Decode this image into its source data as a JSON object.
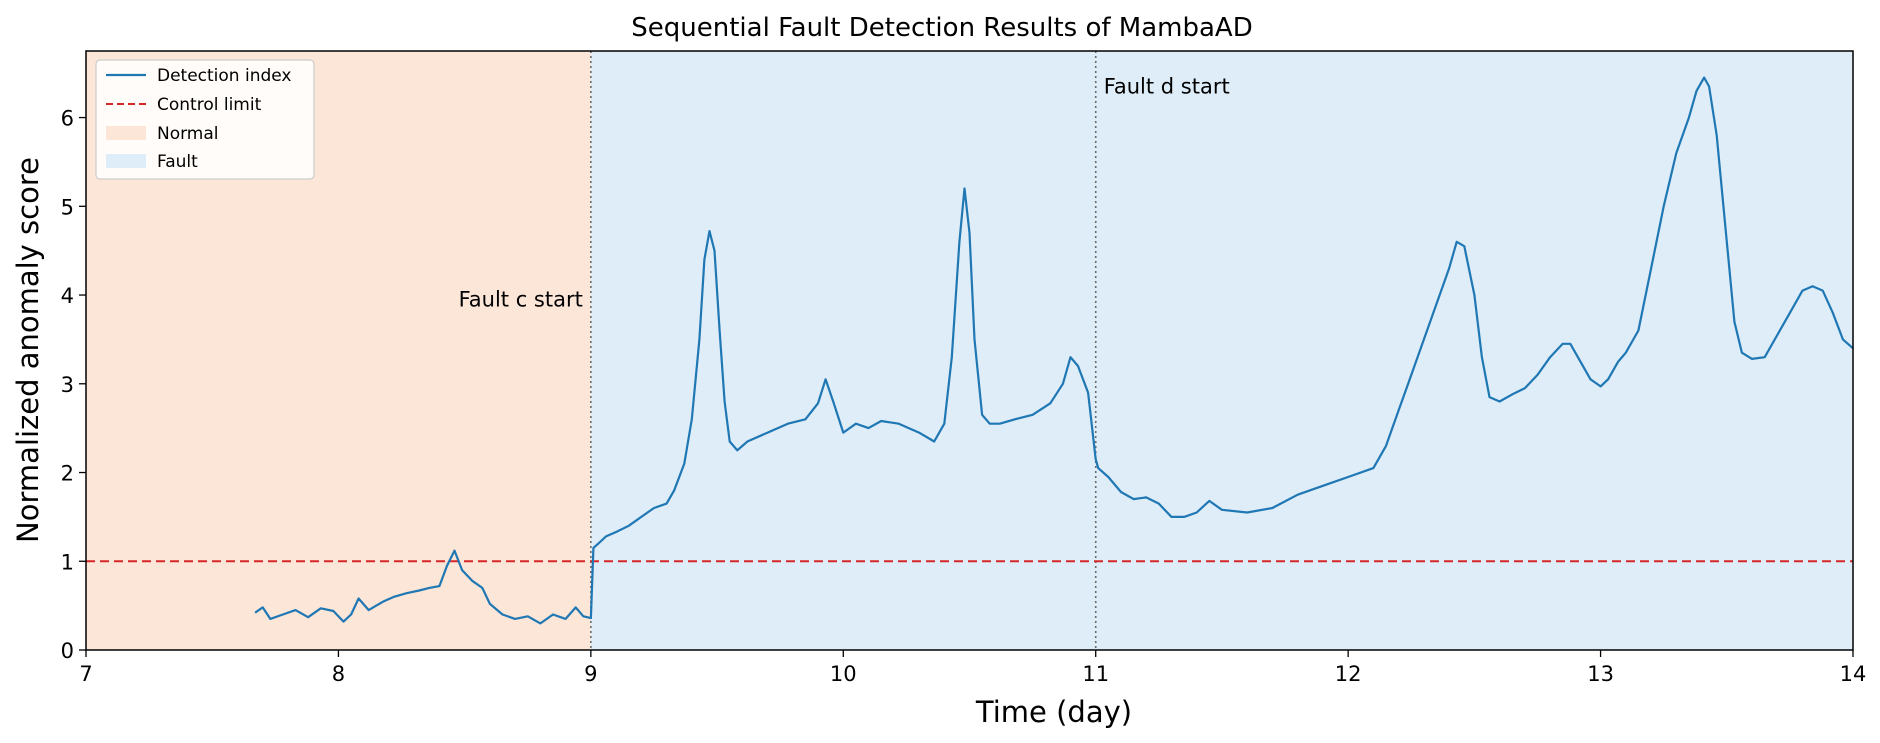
{
  "chart_data": {
    "type": "line",
    "title": "Sequential Fault Detection Results of MambaAD",
    "xlabel": "Time (day)",
    "ylabel": "Normalized anomaly score",
    "xlim": [
      7,
      14
    ],
    "ylim": [
      0,
      6.75
    ],
    "xticks": [
      "7",
      "8",
      "9",
      "10",
      "11",
      "12",
      "13",
      "14"
    ],
    "yticks": [
      "0",
      "1",
      "2",
      "3",
      "4",
      "5",
      "6"
    ],
    "grid": false,
    "legend_position": "top-left",
    "legend": [
      "Detection index",
      "Control limit",
      "Normal",
      "Fault"
    ],
    "regions": [
      {
        "name": "Normal",
        "x_start": 7,
        "x_end": 9,
        "color": "#fbe6d8"
      },
      {
        "name": "Fault",
        "x_start": 9,
        "x_end": 14,
        "color": "#deedf8"
      }
    ],
    "control_limit": {
      "name": "Control limit",
      "y": 1.0,
      "color": "#d62728"
    },
    "annotations": [
      {
        "text": "Fault c start",
        "x": 9.0,
        "y": 3.95
      },
      {
        "text": "Fault d start",
        "x": 11.0,
        "y": 6.35
      }
    ],
    "series": [
      {
        "name": "Detection index",
        "color": "#1f77b4",
        "x": [
          7.67,
          7.7,
          7.73,
          7.78,
          7.83,
          7.88,
          7.93,
          7.98,
          8.02,
          8.05,
          8.08,
          8.12,
          8.15,
          8.18,
          8.22,
          8.27,
          8.32,
          8.36,
          8.4,
          8.43,
          8.46,
          8.49,
          8.53,
          8.57,
          8.6,
          8.65,
          8.7,
          8.75,
          8.8,
          8.85,
          8.9,
          8.94,
          8.97,
          9.0,
          9.01,
          9.03,
          9.06,
          9.1,
          9.15,
          9.2,
          9.25,
          9.3,
          9.33,
          9.37,
          9.4,
          9.43,
          9.45,
          9.47,
          9.49,
          9.51,
          9.53,
          9.55,
          9.58,
          9.62,
          9.7,
          9.78,
          9.85,
          9.9,
          9.93,
          9.96,
          10.0,
          10.05,
          10.1,
          10.15,
          10.22,
          10.3,
          10.36,
          10.4,
          10.43,
          10.46,
          10.48,
          10.5,
          10.52,
          10.55,
          10.58,
          10.62,
          10.68,
          10.75,
          10.82,
          10.87,
          10.9,
          10.93,
          10.97,
          11.0,
          11.01,
          11.05,
          11.1,
          11.15,
          11.2,
          11.25,
          11.3,
          11.35,
          11.4,
          11.45,
          11.5,
          11.6,
          11.7,
          11.8,
          11.9,
          12.0,
          12.1,
          12.15,
          12.2,
          12.25,
          12.3,
          12.35,
          12.4,
          12.43,
          12.46,
          12.5,
          12.53,
          12.56,
          12.6,
          12.65,
          12.7,
          12.75,
          12.8,
          12.85,
          12.88,
          12.92,
          12.96,
          13.0,
          13.03,
          13.07,
          13.1,
          13.15,
          13.2,
          13.25,
          13.3,
          13.35,
          13.38,
          13.41,
          13.43,
          13.46,
          13.5,
          13.53,
          13.56,
          13.6,
          13.65,
          13.7,
          13.75,
          13.8,
          13.84,
          13.88,
          13.92,
          13.96,
          14.0
        ],
        "values": [
          0.42,
          0.48,
          0.35,
          0.4,
          0.45,
          0.37,
          0.47,
          0.44,
          0.32,
          0.4,
          0.58,
          0.45,
          0.5,
          0.55,
          0.6,
          0.64,
          0.67,
          0.7,
          0.72,
          0.95,
          1.12,
          0.9,
          0.78,
          0.7,
          0.52,
          0.4,
          0.35,
          0.38,
          0.3,
          0.4,
          0.35,
          0.48,
          0.38,
          0.36,
          1.15,
          1.2,
          1.28,
          1.33,
          1.4,
          1.5,
          1.6,
          1.65,
          1.8,
          2.1,
          2.6,
          3.5,
          4.4,
          4.72,
          4.5,
          3.6,
          2.8,
          2.35,
          2.25,
          2.35,
          2.45,
          2.55,
          2.6,
          2.78,
          3.05,
          2.8,
          2.45,
          2.55,
          2.5,
          2.58,
          2.55,
          2.45,
          2.35,
          2.55,
          3.3,
          4.6,
          5.2,
          4.7,
          3.5,
          2.65,
          2.55,
          2.55,
          2.6,
          2.65,
          2.78,
          3.0,
          3.3,
          3.2,
          2.9,
          2.15,
          2.05,
          1.95,
          1.78,
          1.7,
          1.72,
          1.65,
          1.5,
          1.5,
          1.55,
          1.68,
          1.58,
          1.55,
          1.6,
          1.75,
          1.85,
          1.95,
          2.05,
          2.3,
          2.7,
          3.1,
          3.5,
          3.9,
          4.3,
          4.6,
          4.55,
          4.0,
          3.3,
          2.85,
          2.8,
          2.88,
          2.95,
          3.1,
          3.3,
          3.45,
          3.45,
          3.25,
          3.05,
          2.97,
          3.05,
          3.25,
          3.35,
          3.6,
          4.3,
          5.0,
          5.6,
          6.0,
          6.3,
          6.45,
          6.35,
          5.8,
          4.6,
          3.7,
          3.35,
          3.28,
          3.3,
          3.55,
          3.8,
          4.05,
          4.1,
          4.05,
          3.8,
          3.5,
          3.4
        ]
      }
    ]
  }
}
